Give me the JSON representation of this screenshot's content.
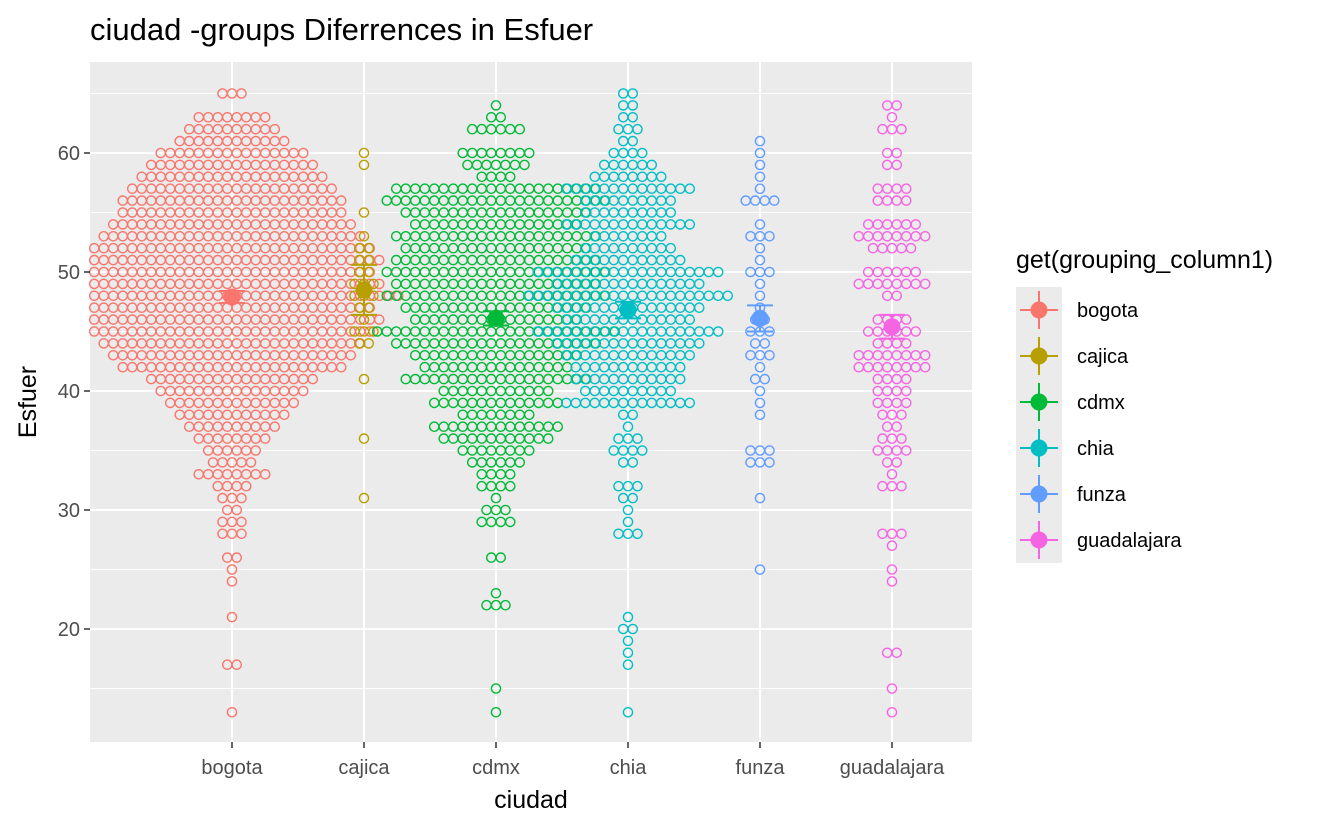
{
  "chart_data": {
    "type": "scatter",
    "subtype": "dotplot-with-mean-errorbars",
    "title": "ciudad -groups Diferrences in  Esfuer",
    "xlabel": "ciudad",
    "ylabel": "Esfuer",
    "categories": [
      "bogota",
      "cajica",
      "cdmx",
      "chia",
      "funza",
      "guadalajara"
    ],
    "yticks": [
      20,
      30,
      40,
      50,
      60
    ],
    "ylim": [
      10,
      67
    ],
    "grid": true,
    "legend": {
      "title": "get(grouping_column1)",
      "placement": "right",
      "entries": [
        "bogota",
        "cajica",
        "cdmx",
        "chia",
        "funza",
        "guadalajara"
      ]
    },
    "colors": {
      "bogota": "#F8766D",
      "cajica": "#B79F00",
      "cdmx": "#00BA38",
      "chia": "#00BFC4",
      "funza": "#619CFF",
      "guadalajara": "#F564E3",
      "panel": "#EBEBEB",
      "grid": "#FFFFFF"
    },
    "series": [
      {
        "name": "bogota",
        "mean": 47.9,
        "ci_low": 47.4,
        "ci_high": 48.4,
        "counts": {
          "65": 3,
          "63": 8,
          "62": 10,
          "61": 12,
          "60": 16,
          "59": 18,
          "58": 20,
          "57": 22,
          "56": 24,
          "55": 24,
          "54": 26,
          "53": 28,
          "52": 30,
          "51": 32,
          "50": 30,
          "49": 32,
          "48": 36,
          "47": 30,
          "46": 32,
          "45": 30,
          "44": 28,
          "43": 26,
          "42": 24,
          "41": 18,
          "40": 16,
          "39": 14,
          "38": 12,
          "37": 10,
          "36": 8,
          "35": 6,
          "34": 5,
          "33": 8,
          "32": 4,
          "31": 3,
          "30": 2,
          "29": 3,
          "28": 3,
          "26": 2,
          "25": 1,
          "24": 1,
          "21": 1,
          "17": 2,
          "13": 1
        }
      },
      {
        "name": "cajica",
        "mean": 48.5,
        "ci_low": 46.4,
        "ci_high": 50.6,
        "counts": {
          "60": 1,
          "59": 1,
          "55": 1,
          "53": 1,
          "52": 2,
          "51": 2,
          "50": 2,
          "49": 3,
          "48": 3,
          "47": 2,
          "46": 1,
          "45": 3,
          "44": 2,
          "41": 1,
          "36": 1,
          "31": 1
        }
      },
      {
        "name": "cdmx",
        "mean": 46.1,
        "ci_low": 45.5,
        "ci_high": 46.7,
        "counts": {
          "64": 1,
          "63": 2,
          "62": 6,
          "60": 8,
          "59": 7,
          "58": 4,
          "57": 22,
          "56": 24,
          "55": 20,
          "54": 18,
          "53": 22,
          "52": 20,
          "51": 22,
          "50": 24,
          "49": 22,
          "48": 24,
          "47": 20,
          "46": 18,
          "45": 26,
          "44": 22,
          "43": 18,
          "42": 16,
          "41": 20,
          "40": 12,
          "39": 14,
          "38": 8,
          "37": 14,
          "36": 12,
          "35": 8,
          "34": 6,
          "33": 4,
          "32": 4,
          "31": 1,
          "30": 3,
          "29": 4,
          "26": 2,
          "23": 1,
          "22": 3,
          "15": 1,
          "13": 1
        }
      },
      {
        "name": "chia",
        "mean": 46.8,
        "ci_low": 46.1,
        "ci_high": 47.5,
        "counts": {
          "65": 2,
          "64": 2,
          "63": 2,
          "62": 3,
          "61": 2,
          "60": 4,
          "59": 6,
          "58": 8,
          "57": 14,
          "56": 10,
          "55": 10,
          "54": 14,
          "53": 8,
          "52": 10,
          "51": 12,
          "50": 20,
          "49": 16,
          "48": 22,
          "47": 16,
          "46": 14,
          "45": 20,
          "44": 16,
          "43": 14,
          "42": 12,
          "41": 12,
          "40": 10,
          "39": 14,
          "38": 2,
          "37": 1,
          "36": 3,
          "35": 4,
          "34": 2,
          "32": 3,
          "31": 2,
          "30": 1,
          "29": 1,
          "28": 3,
          "21": 1,
          "20": 2,
          "19": 1,
          "18": 1,
          "17": 1,
          "13": 1
        }
      },
      {
        "name": "funza",
        "mean": 46.1,
        "ci_low": 45.0,
        "ci_high": 47.2,
        "counts": {
          "61": 1,
          "60": 1,
          "59": 1,
          "58": 1,
          "57": 1,
          "56": 4,
          "54": 1,
          "53": 3,
          "52": 1,
          "51": 1,
          "50": 3,
          "49": 1,
          "48": 1,
          "47": 1,
          "46": 2,
          "45": 3,
          "44": 2,
          "43": 3,
          "42": 1,
          "41": 2,
          "40": 1,
          "39": 1,
          "38": 1,
          "35": 3,
          "34": 3,
          "31": 1,
          "25": 1
        }
      },
      {
        "name": "guadalajara",
        "mean": 45.4,
        "ci_low": 44.4,
        "ci_high": 46.4,
        "counts": {
          "64": 2,
          "63": 1,
          "62": 3,
          "60": 2,
          "59": 2,
          "57": 4,
          "56": 4,
          "54": 6,
          "53": 8,
          "52": 5,
          "50": 6,
          "49": 8,
          "48": 2,
          "46": 4,
          "45": 6,
          "44": 4,
          "43": 8,
          "42": 8,
          "41": 4,
          "40": 4,
          "39": 4,
          "38": 3,
          "37": 2,
          "36": 3,
          "35": 4,
          "34": 2,
          "33": 1,
          "32": 3,
          "28": 3,
          "27": 1,
          "25": 1,
          "24": 1,
          "18": 2,
          "15": 1,
          "13": 1
        }
      }
    ]
  }
}
